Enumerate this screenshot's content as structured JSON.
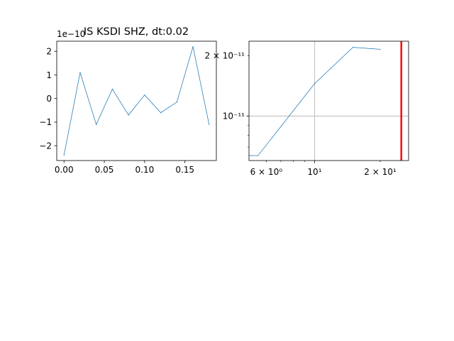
{
  "chart_data": [
    {
      "type": "line",
      "title": "IS KSDI SHZ, dt:0.02",
      "xlabel": "",
      "ylabel": "",
      "offset_label": "1e−10",
      "x": [
        0.0,
        0.02,
        0.04,
        0.06,
        0.08,
        0.1,
        0.12,
        0.14,
        0.16,
        0.18
      ],
      "series": [
        {
          "values": [
            -2.4,
            1.1,
            -1.1,
            0.4,
            -0.7,
            0.15,
            -0.6,
            -0.15,
            2.2,
            -1.1
          ],
          "color": "#1f77b4"
        }
      ],
      "xlim": [
        -0.009,
        0.189
      ],
      "ylim": [
        -2.63,
        2.43
      ],
      "xticks": [
        0.0,
        0.05,
        0.1,
        0.15
      ],
      "xtick_labels": [
        "0.00",
        "0.05",
        "0.10",
        "0.15"
      ],
      "yticks": [
        -2,
        -1,
        0,
        1,
        2
      ],
      "ytick_labels": [
        "−2",
        "−1",
        "0",
        "1",
        "2"
      ],
      "grid": false
    },
    {
      "type": "line",
      "title": "",
      "xlabel": "",
      "ylabel": "",
      "xscale": "log",
      "yscale": "log",
      "x": [
        5.0,
        5.5,
        10.0,
        15.0,
        20.0
      ],
      "series": [
        {
          "values": [
            6.35e-12,
            6.35e-12,
            1.45e-11,
            2.2e-11,
            2.15e-11
          ],
          "color": "#1f77b4"
        }
      ],
      "vline": {
        "x": 25.0,
        "color": "#ff0000"
      },
      "xlim": [
        5.0,
        27.0
      ],
      "ylim": [
        6e-12,
        2.36e-11
      ],
      "xticks": [
        6.0,
        10.0,
        20.0
      ],
      "xtick_labels": [
        "6 × 10⁰",
        "10¹",
        "2 × 10¹"
      ],
      "yticks": [
        1e-11,
        2e-11
      ],
      "ytick_labels": [
        "10⁻¹¹",
        "2 × 10⁻¹¹"
      ],
      "grid": true
    }
  ]
}
